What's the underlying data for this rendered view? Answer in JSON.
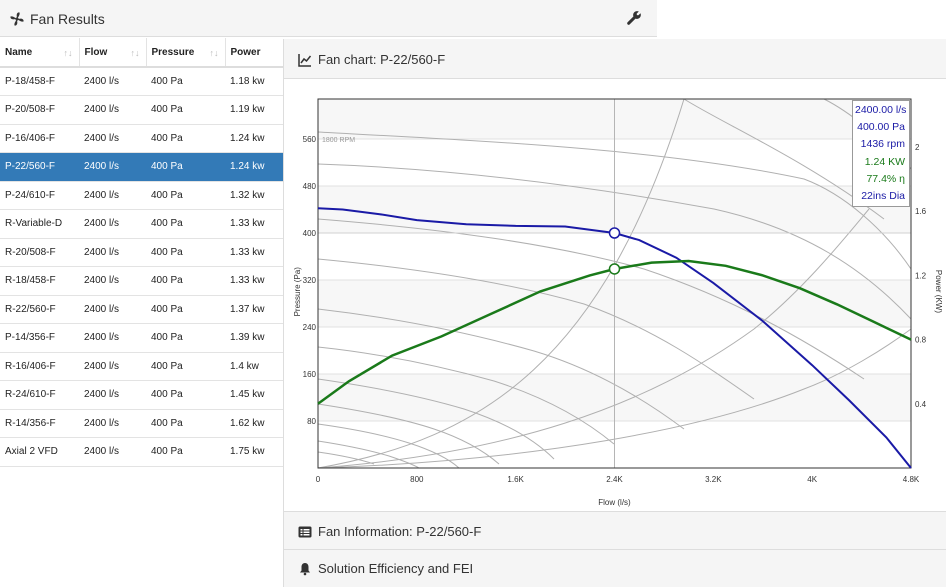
{
  "results": {
    "title": "Fan Results",
    "columns": [
      "Name",
      "Flow",
      "Pressure",
      "Power"
    ],
    "sort_icon": "↑↓",
    "rows": [
      {
        "name": "P-18/458-F",
        "flow": "2400 l/s",
        "pressure": "400 Pa",
        "power": "1.18 kw"
      },
      {
        "name": "P-20/508-F",
        "flow": "2400 l/s",
        "pressure": "400 Pa",
        "power": "1.19 kw"
      },
      {
        "name": "P-16/406-F",
        "flow": "2400 l/s",
        "pressure": "400 Pa",
        "power": "1.24 kw"
      },
      {
        "name": "P-22/560-F",
        "flow": "2400 l/s",
        "pressure": "400 Pa",
        "power": "1.24 kw"
      },
      {
        "name": "P-24/610-F",
        "flow": "2400 l/s",
        "pressure": "400 Pa",
        "power": "1.32 kw"
      },
      {
        "name": "R-Variable-D",
        "flow": "2400 l/s",
        "pressure": "400 Pa",
        "power": "1.33 kw"
      },
      {
        "name": "R-20/508-F",
        "flow": "2400 l/s",
        "pressure": "400 Pa",
        "power": "1.33 kw"
      },
      {
        "name": "R-18/458-F",
        "flow": "2400 l/s",
        "pressure": "400 Pa",
        "power": "1.33 kw"
      },
      {
        "name": "R-22/560-F",
        "flow": "2400 l/s",
        "pressure": "400 Pa",
        "power": "1.37 kw"
      },
      {
        "name": "P-14/356-F",
        "flow": "2400 l/s",
        "pressure": "400 Pa",
        "power": "1.39 kw"
      },
      {
        "name": "R-16/406-F",
        "flow": "2400 l/s",
        "pressure": "400 Pa",
        "power": "1.4 kw"
      },
      {
        "name": "R-24/610-F",
        "flow": "2400 l/s",
        "pressure": "400 Pa",
        "power": "1.45 kw"
      },
      {
        "name": "R-14/356-F",
        "flow": "2400 l/s",
        "pressure": "400 Pa",
        "power": "1.62 kw"
      },
      {
        "name": "Axial 2 VFD",
        "flow": "2400 l/s",
        "pressure": "400 Pa",
        "power": "1.75 kw"
      }
    ],
    "selected_index": 3,
    "header_icon": "fan-icon",
    "settings_icon": "wrench-icon"
  },
  "chart_section": {
    "title": "Fan chart: P-22/560-F",
    "icon": "line-chart-icon"
  },
  "info_section": {
    "title": "Fan Information: P-22/560-F",
    "icon": "list-icon"
  },
  "efficiency_section": {
    "title": "Solution Efficiency and FEI",
    "icon": "bell-icon"
  },
  "readout": {
    "flow": "2400.00 l/s",
    "pressure": "400.00 Pa",
    "speed": "1436 rpm",
    "power": "1.24 KW",
    "efficiency": "77.4% η",
    "diameter": "22ins Dia"
  },
  "colors": {
    "pressure_curve": "#1a1aa6",
    "power_curve": "#1a7a1a",
    "selected_row": "#337ab7",
    "header_bg": "#f5f5f5"
  },
  "chart_data": {
    "type": "line",
    "xlabel": "Flow (l/s)",
    "ylabel": "Pressure (Pa)",
    "y2label": "Power (KW)",
    "xlim": [
      0,
      4800
    ],
    "ylim": [
      0,
      560
    ],
    "y2lim": [
      0,
      2.0
    ],
    "x_ticks": [
      {
        "v": 0,
        "label": "0"
      },
      {
        "v": 800,
        "label": "800"
      },
      {
        "v": 1600,
        "label": "1.6K"
      },
      {
        "v": 2400,
        "label": "2.4K"
      },
      {
        "v": 3200,
        "label": "3.2K"
      },
      {
        "v": 4000,
        "label": "4K"
      },
      {
        "v": 4800,
        "label": "4.8K"
      }
    ],
    "y_ticks": [
      {
        "v": 80,
        "label": "80"
      },
      {
        "v": 160,
        "label": "160"
      },
      {
        "v": 240,
        "label": "240"
      },
      {
        "v": 320,
        "label": "320"
      },
      {
        "v": 400,
        "label": "400"
      },
      {
        "v": 480,
        "label": "480"
      },
      {
        "v": 560,
        "label": "560"
      }
    ],
    "y2_ticks": [
      {
        "v": 0.4,
        "label": "0.4"
      },
      {
        "v": 0.8,
        "label": "0.8"
      },
      {
        "v": 1.2,
        "label": "1.2"
      },
      {
        "v": 1.6,
        "label": "1.6"
      },
      {
        "v": 2.0,
        "label": "2"
      }
    ],
    "speed_label": "1800 RPM",
    "series": [
      {
        "name": "Pressure",
        "axis": "left",
        "x": [
          0,
          200,
          500,
          800,
          1200,
          1600,
          2000,
          2400,
          2600,
          2900,
          3200,
          3600,
          4000,
          4300,
          4600,
          4800
        ],
        "y": [
          442,
          440,
          432,
          422,
          415,
          412,
          411,
          400,
          388,
          358,
          315,
          250,
          175,
          115,
          52,
          0
        ]
      },
      {
        "name": "Power",
        "axis": "right",
        "x": [
          0,
          250,
          600,
          1000,
          1400,
          1800,
          2200,
          2400,
          2700,
          3000,
          3300,
          3600,
          3900,
          4200,
          4500,
          4800
        ],
        "y": [
          0.4,
          0.54,
          0.7,
          0.82,
          0.96,
          1.1,
          1.2,
          1.24,
          1.28,
          1.29,
          1.26,
          1.2,
          1.12,
          1.02,
          0.91,
          0.8
        ]
      }
    ],
    "operating_point": {
      "flow": 2400,
      "pressure": 400,
      "power": 1.24
    }
  }
}
